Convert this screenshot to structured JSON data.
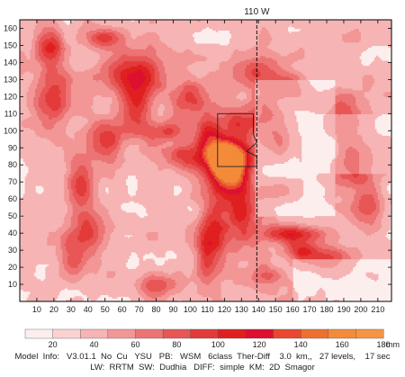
{
  "chart_data": {
    "type": "heatmap",
    "meridian_label": "110 W",
    "meridian_x": 139,
    "xlim": [
      0,
      218
    ],
    "ylim": [
      0,
      165
    ],
    "xticks": [
      10,
      20,
      30,
      40,
      50,
      60,
      70,
      80,
      90,
      100,
      110,
      120,
      130,
      140,
      150,
      160,
      170,
      180,
      190,
      200,
      210
    ],
    "yticks": [
      10,
      20,
      30,
      40,
      50,
      60,
      70,
      80,
      90,
      100,
      110,
      120,
      130,
      140,
      150,
      160
    ],
    "colorbar": {
      "unit": "mm",
      "levels": [
        20,
        40,
        60,
        80,
        100,
        120,
        140,
        160,
        180
      ],
      "colors": [
        "#fdeeee",
        "#fad2d2",
        "#f6b4b4",
        "#f29696",
        "#ec7474",
        "#e85656",
        "#e33a3a",
        "#e02020",
        "#dd1030",
        "#e84830",
        "#ee7030",
        "#f38b3b",
        "#f49545"
      ]
    },
    "grid_size": [
      218,
      165
    ],
    "value_units": "mm",
    "state_outline": [
      [
        116,
        79
      ],
      [
        116,
        110
      ],
      [
        137,
        110
      ],
      [
        137,
        98
      ],
      [
        139,
        93
      ],
      [
        133,
        88
      ],
      [
        139,
        85
      ],
      [
        139,
        79
      ]
    ]
  },
  "footer": {
    "line1": "Model  Info:   V3.01.1  No  Cu   YSU   PB:   WSM   6class  Ther-Diff    3.0  km,,   27 levels,    17 sec",
    "line2": "LW:  RRTM  SW:  Dudhia   DIFF:  simple  KM:  2D  Smagor"
  }
}
